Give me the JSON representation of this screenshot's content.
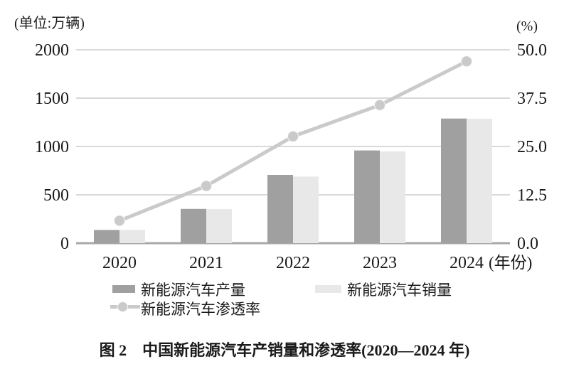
{
  "figure": {
    "caption": "图 2　中国新能源汽车产销量和渗透率(2020—2024 年)"
  },
  "legend": {
    "production": "新能源汽车产量",
    "sales": "新能源汽车销量",
    "penetration": "新能源汽车渗透率"
  },
  "colors": {
    "production_bar": "#a0a0a0",
    "sales_bar": "#e8e8e8",
    "penetration_line": "#cacaca",
    "gridline": "#d9d9d9",
    "axis_line": "#a8a8a8",
    "text": "#1a1a1a"
  },
  "chart_data": {
    "type": "bar",
    "subtype": "grouped-bar-with-line",
    "categories": [
      "2020",
      "2021",
      "2022",
      "2023",
      "2024"
    ],
    "bar_series": [
      {
        "name": "新能源汽车产量",
        "axis": "left",
        "values": [
          136.6,
          354.5,
          705.8,
          958.7,
          1288.8
        ]
      },
      {
        "name": "新能源汽车销量",
        "axis": "left",
        "values": [
          136.7,
          352.1,
          688.7,
          949.5,
          1286.6
        ]
      }
    ],
    "line_series": [
      {
        "name": "新能源汽车渗透率",
        "axis": "right",
        "values": [
          5.8,
          14.8,
          27.6,
          35.7,
          47.0
        ]
      }
    ],
    "left_axis": {
      "label": "(单位:万辆)",
      "min": 0,
      "max": 2000,
      "tick_labels": [
        "2000",
        "1500",
        "1000",
        "500",
        "0"
      ]
    },
    "right_axis": {
      "label": "(%)",
      "min": 0,
      "max": 50,
      "tick_labels": [
        "50.0",
        "37.5",
        "25.0",
        "12.5",
        "0.0"
      ]
    },
    "x_axis": {
      "label": "(年份)"
    },
    "grid": true,
    "legend_position": "bottom",
    "title": "图 2　中国新能源汽车产销量和渗透率(2020—2024 年)"
  }
}
